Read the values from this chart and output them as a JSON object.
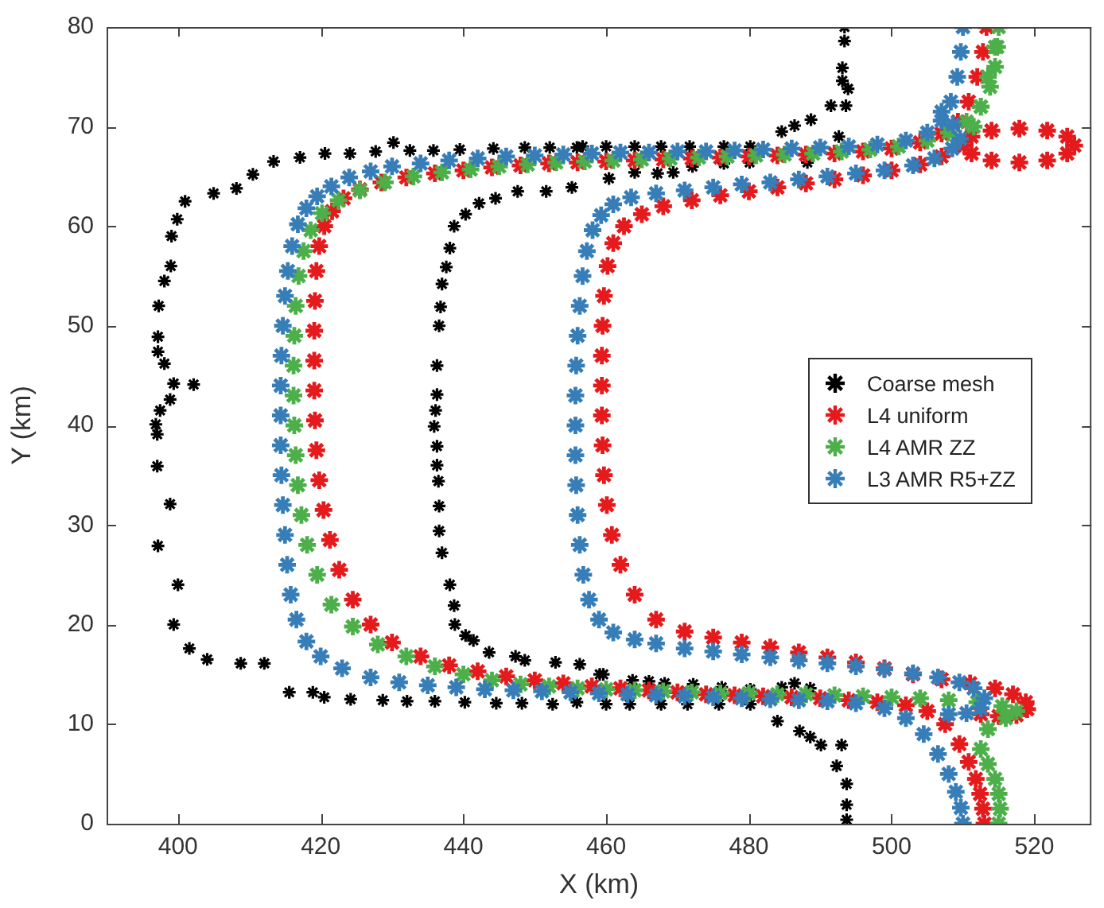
{
  "chart_data": {
    "type": "scatter",
    "xlabel": "X (km)",
    "ylabel": "Y (km)",
    "xlim": [
      390,
      528
    ],
    "ylim": [
      0,
      80
    ],
    "xticks": [
      400,
      420,
      440,
      460,
      480,
      500,
      520
    ],
    "yticks": [
      0,
      10,
      20,
      30,
      40,
      50,
      60,
      70,
      80
    ],
    "grid": false,
    "legend": "right",
    "marker": "cross",
    "series": [
      {
        "name": "Coarse mesh",
        "color": "#000000",
        "x": [
          401.0,
          405.0,
          408.2,
          410.5,
          413.4,
          417.1,
          420.6,
          424.1,
          427.7,
          430.2,
          432.5,
          435.8,
          439.5,
          444.2,
          448.6,
          452.1,
          455.9,
          456.7,
          460.0,
          464.0,
          467.7,
          471.7,
          476.5,
          480.2,
          484.6,
          486.4,
          488.7,
          491.5,
          493.6,
          493.9,
          493.1,
          493.1,
          493.4,
          493.4,
          399.9,
          399.1,
          399.0,
          398.1,
          397.3,
          397.2,
          397.2,
          398.1,
          399.4,
          402.2,
          398.9,
          397.5,
          396.9,
          397.1,
          397.1,
          398.9,
          397.2,
          400.0,
          399.4,
          401.6,
          404.1,
          408.8,
          412.1,
          415.6,
          418.9,
          420.5,
          424.2,
          428.7,
          432.1,
          436.0,
          440.2,
          444.6,
          448.2,
          452.5,
          455.9,
          460.0,
          463.3,
          467.7,
          471.4,
          475.8,
          480.2,
          484.0,
          487.1,
          488.6,
          490.1,
          493.0,
          492.3,
          493.7,
          493.7,
          493.7,
          455.2,
          451.6,
          447.6,
          444.5,
          442.2,
          440.3,
          438.7,
          438.1,
          437.6,
          437.0,
          436.8,
          436.6,
          436.3,
          436.3,
          436.1,
          435.9,
          436.3,
          436.3,
          436.5,
          436.6,
          436.6,
          437.0,
          438.1,
          438.7,
          438.8,
          440.3,
          441.4,
          443.6,
          447.3,
          448.6,
          452.9,
          456.3,
          459.1,
          459.6,
          463.7,
          466.0,
          468.2,
          472.2,
          476.2,
          480.2,
          484.6,
          486.4,
          488.6,
          460.4,
          464.0,
          467.2,
          469.4,
          472.1,
          476.5,
          480.1,
          488.2,
          492.6
        ],
        "values": [
          62.5,
          63.3,
          63.8,
          65.2,
          66.5,
          66.9,
          67.3,
          67.3,
          67.5,
          68.4,
          67.6,
          67.6,
          67.7,
          67.8,
          67.9,
          67.9,
          67.9,
          68.0,
          68.0,
          68.0,
          68.0,
          68.0,
          68.0,
          68.0,
          69.5,
          70.1,
          70.7,
          72.1,
          72.1,
          73.8,
          74.6,
          75.9,
          78.6,
          80.0,
          60.7,
          59.0,
          56.0,
          54.5,
          52.0,
          48.9,
          47.4,
          46.2,
          44.2,
          44.1,
          42.6,
          41.5,
          40.1,
          39.1,
          35.9,
          32.1,
          27.9,
          24.0,
          20.0,
          17.6,
          16.5,
          16.1,
          16.1,
          13.2,
          13.2,
          12.7,
          12.5,
          12.4,
          12.3,
          12.3,
          12.2,
          12.1,
          12.1,
          12.0,
          12.2,
          12.0,
          12.0,
          12.0,
          12.0,
          12.0,
          12.0,
          10.3,
          9.3,
          8.7,
          7.9,
          7.9,
          5.8,
          4.0,
          1.9,
          0.4,
          63.9,
          63.5,
          63.5,
          62.8,
          62.3,
          61.2,
          60.0,
          57.8,
          55.9,
          54.2,
          51.9,
          50.0,
          46.0,
          43.1,
          41.5,
          39.9,
          37.9,
          36.0,
          34.4,
          31.9,
          29.4,
          27.2,
          24.0,
          21.9,
          20.0,
          18.9,
          18.4,
          17.2,
          16.8,
          16.4,
          16.2,
          16.0,
          15.0,
          15.0,
          14.4,
          14.3,
          14.1,
          14.0,
          13.7,
          13.5,
          13.7,
          14.1,
          13.6,
          64.8,
          65.4,
          65.3,
          65.4,
          66.0,
          66.3,
          66.4,
          66.4,
          69.0
        ]
      },
      {
        "name": "L4 uniform",
        "color": "#e41a1c",
        "x": [
          513.3,
          512.8,
          512,
          510.8,
          509.3,
          507,
          504,
          500,
          496,
          492,
          488,
          484,
          480,
          476,
          472,
          468,
          464,
          460,
          456,
          452,
          448,
          444,
          440,
          436,
          432,
          428.5,
          425.5,
          423.2,
          421.6,
          420.5,
          419.8,
          419.4,
          419.2,
          419.1,
          419.1,
          419.1,
          419.2,
          419.4,
          419.8,
          420.4,
          421.3,
          422.6,
          424.5,
          427,
          430,
          434,
          438,
          442,
          446,
          450,
          454,
          458,
          462,
          466,
          470,
          474,
          478,
          482,
          486,
          490,
          494,
          498,
          502,
          505,
          507.5,
          509.5,
          510.8,
          511.8,
          512.4,
          512.8,
          513,
          509.5,
          507,
          504,
          500,
          496,
          492,
          488,
          484,
          480,
          476,
          472,
          468,
          465,
          462.5,
          461,
          460.2,
          459.7,
          459.5,
          459.4,
          459.4,
          459.4,
          459.5,
          459.7,
          460.1,
          460.8,
          462,
          464,
          467,
          471,
          475,
          479,
          483,
          487,
          491,
          495,
          499,
          503,
          507,
          511,
          514.5,
          517,
          518.8,
          519,
          517.5,
          515,
          512.5,
          525.6,
          524.6,
          521.8,
          517.9,
          514,
          511.2,
          510.2,
          511.2,
          514,
          517.9,
          521.8,
          524.6
        ],
        "values": [
          80,
          77.5,
          75,
          72.5,
          70.5,
          69.3,
          68.4,
          67.8,
          67.5,
          67.3,
          67.2,
          67.1,
          67,
          66.9,
          66.8,
          66.7,
          66.6,
          66.5,
          66.4,
          66.3,
          66.1,
          65.9,
          65.6,
          65.3,
          64.9,
          64.4,
          63.7,
          62.8,
          61.5,
          60,
          58,
          55.5,
          52.5,
          49.5,
          46.5,
          43.5,
          40.5,
          37.5,
          34.5,
          31.5,
          28.5,
          25.5,
          22.5,
          20,
          18.2,
          16.8,
          15.9,
          15.3,
          14.8,
          14.4,
          14.1,
          13.8,
          13.6,
          13.4,
          13.2,
          13,
          12.9,
          12.8,
          12.7,
          12.6,
          12.4,
          12.2,
          11.9,
          11.3,
          10,
          8,
          6.2,
          4.5,
          3,
          1.5,
          0,
          68.3,
          67,
          66.2,
          65.6,
          65.1,
          64.7,
          64.3,
          63.9,
          63.5,
          63.1,
          62.6,
          62,
          61.2,
          60,
          58.3,
          56,
          53,
          50,
          47,
          44,
          41,
          38,
          35,
          32,
          29,
          26,
          23,
          20.5,
          19.3,
          18.7,
          18.2,
          17.7,
          17.2,
          16.7,
          16.2,
          15.6,
          15,
          14.5,
          14.1,
          13.6,
          13,
          12.2,
          11.5,
          10.9,
          10.8,
          11,
          68.1,
          69,
          69.6,
          69.8,
          69.6,
          69,
          68.1,
          67.3,
          66.6,
          66.4,
          66.6,
          67.3
        ]
      },
      {
        "name": "L4 AMR ZZ",
        "color": "#4daf4a",
        "x": [
          515,
          514.8,
          514.5,
          513.8,
          512.5,
          510.5,
          508,
          505,
          501,
          497,
          493,
          489,
          485,
          481,
          477,
          473,
          469,
          465,
          461,
          457,
          453,
          449,
          445,
          441,
          437,
          433,
          429,
          425.5,
          422.5,
          420.2,
          418.6,
          417.6,
          416.9,
          416.5,
          416.3,
          416.2,
          416.2,
          416.3,
          416.5,
          416.8,
          417.3,
          418.1,
          419.5,
          421.5,
          424.5,
          428,
          432,
          436,
          440,
          444,
          448,
          452,
          456,
          460,
          464,
          468,
          472,
          476,
          480,
          484,
          488,
          492,
          496,
          500,
          504,
          508,
          512,
          515.5,
          517.5,
          516,
          513.5,
          512.5,
          513.5,
          514.5,
          515,
          515.2,
          515,
          511.5,
          512.5,
          513.5,
          514.5
        ],
        "values": [
          80,
          78,
          76,
          74,
          72,
          70.5,
          69.4,
          68.6,
          68,
          67.7,
          67.5,
          67.3,
          67.2,
          67.1,
          67,
          66.9,
          66.8,
          66.7,
          66.6,
          66.5,
          66.4,
          66.2,
          66,
          65.7,
          65.4,
          65,
          64.4,
          63.6,
          62.6,
          61.3,
          59.6,
          57.5,
          55,
          52,
          49,
          46,
          43,
          40,
          37,
          34,
          31,
          28,
          25,
          22,
          19.8,
          18,
          16.8,
          15.8,
          15,
          14.4,
          14,
          13.8,
          13.6,
          13.5,
          13.4,
          13.3,
          13.2,
          13.1,
          13.1,
          13,
          13,
          12.9,
          12.8,
          12.7,
          12.6,
          12.4,
          12.2,
          11.8,
          11.3,
          10.6,
          9.5,
          7.5,
          6,
          4.5,
          3,
          1.5,
          0,
          70,
          72,
          75,
          78
        ]
      },
      {
        "name": "L3 AMR R5+ZZ",
        "color": "#377eb8",
        "x": [
          510,
          509.7,
          509.2,
          508.3,
          507,
          505,
          502,
          498,
          494,
          490,
          486,
          482,
          478,
          474,
          470,
          466,
          462,
          458,
          454,
          450,
          446,
          442,
          438,
          434,
          430,
          427,
          424,
          421.5,
          419.5,
          418,
          416.8,
          416,
          415.4,
          415,
          414.7,
          414.5,
          414.4,
          414.4,
          414.4,
          414.5,
          414.7,
          415,
          415.3,
          415.8,
          416.6,
          418,
          420,
          423,
          427,
          431,
          435,
          439,
          443,
          447,
          451,
          455,
          459,
          463,
          467,
          471,
          475,
          479,
          483,
          487,
          491,
          495,
          499,
          502,
          504.5,
          506.5,
          508,
          509,
          509.7,
          510,
          507,
          508.6,
          509.6,
          508.5,
          506,
          503,
          499,
          495,
          491,
          487,
          483,
          479,
          475,
          471,
          467,
          463.5,
          461,
          459.3,
          458.1,
          457.3,
          456.7,
          456.3,
          456,
          455.8,
          455.7,
          455.7,
          455.7,
          455.8,
          456,
          456.3,
          456.8,
          457.6,
          459,
          461,
          464,
          467,
          471,
          475,
          479,
          483,
          487,
          491,
          495,
          499,
          503,
          506.5,
          509.5,
          511.5,
          513,
          512.5,
          510.5,
          508
        ],
        "values": [
          80,
          77.5,
          75,
          72.5,
          70.6,
          69.4,
          68.6,
          68.2,
          68,
          67.9,
          67.8,
          67.7,
          67.6,
          67.5,
          67.5,
          67.4,
          67.4,
          67.3,
          67.2,
          67.1,
          67,
          66.8,
          66.6,
          66.3,
          66,
          65.5,
          64.9,
          64,
          63,
          61.8,
          60.2,
          58,
          55.5,
          53,
          50,
          47,
          44,
          41,
          38,
          35,
          32,
          29,
          26,
          23,
          20.5,
          18.3,
          16.8,
          15.6,
          14.7,
          14.2,
          13.9,
          13.7,
          13.5,
          13.4,
          13.3,
          13.2,
          13.1,
          13,
          12.9,
          12.8,
          12.7,
          12.6,
          12.5,
          12.4,
          12.3,
          12.1,
          11.6,
          10.6,
          9,
          7,
          5,
          3.2,
          1.6,
          0,
          71.5,
          70.2,
          68.8,
          67.8,
          66.8,
          66.1,
          65.6,
          65.3,
          65,
          64.7,
          64.4,
          64.2,
          63.9,
          63.6,
          63.3,
          62.9,
          62.2,
          61.1,
          59.6,
          57.5,
          55,
          52,
          49,
          46,
          43,
          40,
          37,
          34,
          31,
          28,
          25,
          22.5,
          20.5,
          19.2,
          18.5,
          18.1,
          17.6,
          17.3,
          17,
          16.7,
          16.4,
          16.1,
          15.8,
          15.5,
          15.1,
          14.7,
          14.2,
          13.6,
          12.6,
          11.6,
          11.1,
          11
        ]
      }
    ]
  }
}
